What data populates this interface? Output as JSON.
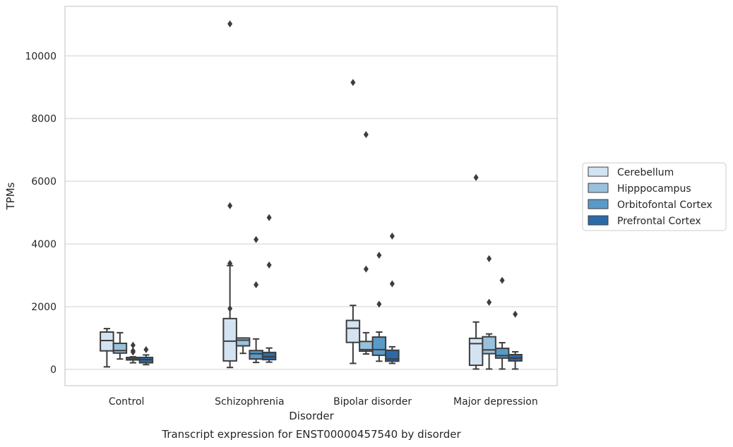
{
  "chart_data": {
    "type": "box",
    "title": "",
    "caption": "Transcript expression for ENST00000457540 by disorder",
    "xlabel": "Disorder",
    "ylabel": "TPMs",
    "ylim": [
      -520,
      11580
    ],
    "yticks": [
      0,
      2000,
      4000,
      6000,
      8000,
      10000
    ],
    "grid": "horizontal",
    "legend_position": "right",
    "categories": [
      "Control",
      "Schizophrenia",
      "Bipolar disorder",
      "Major depression"
    ],
    "series": [
      {
        "name": "Cerebellum",
        "color": "#d4e3f2",
        "boxes": [
          {
            "whisker_low": 80,
            "q1": 590,
            "median": 920,
            "q3": 1190,
            "whisker_high": 1300,
            "outliers": []
          },
          {
            "whisker_low": 60,
            "q1": 270,
            "median": 900,
            "q3": 1620,
            "whisker_high": 3310,
            "outliers": [
              1940,
              3380,
              5220,
              11020
            ]
          },
          {
            "whisker_low": 190,
            "q1": 860,
            "median": 1310,
            "q3": 1560,
            "whisker_high": 2040,
            "outliers": [
              9150
            ]
          },
          {
            "whisker_low": 10,
            "q1": 130,
            "median": 820,
            "q3": 990,
            "whisker_high": 1510,
            "outliers": [
              6120
            ]
          }
        ]
      },
      {
        "name": "Hipppocampus",
        "color": "#99c1de",
        "boxes": [
          {
            "whisker_low": 330,
            "q1": 520,
            "median": 600,
            "q3": 830,
            "whisker_high": 1170,
            "outliers": []
          },
          {
            "whisker_low": 510,
            "q1": 750,
            "median": 930,
            "q3": 1000,
            "whisker_high": 1000,
            "outliers": []
          },
          {
            "whisker_low": 490,
            "q1": 580,
            "median": 630,
            "q3": 890,
            "whisker_high": 1170,
            "outliers": [
              3200,
              7490
            ]
          },
          {
            "whisker_low": 10,
            "q1": 500,
            "median": 620,
            "q3": 1040,
            "whisker_high": 1130,
            "outliers": [
              2140,
              3530
            ]
          }
        ]
      },
      {
        "name": "Orbitofontal Cortex",
        "color": "#5a9ac8",
        "boxes": [
          {
            "whisker_low": 210,
            "q1": 300,
            "median": 330,
            "q3": 380,
            "whisker_high": 400,
            "outliers": [
              550,
              590,
              770
            ]
          },
          {
            "whisker_low": 220,
            "q1": 330,
            "median": 500,
            "q3": 600,
            "whisker_high": 970,
            "outliers": [
              2700,
              4140
            ]
          },
          {
            "whisker_low": 260,
            "q1": 450,
            "median": 630,
            "q3": 1030,
            "whisker_high": 1190,
            "outliers": [
              2080,
              3640
            ]
          },
          {
            "whisker_low": 10,
            "q1": 360,
            "median": 440,
            "q3": 670,
            "whisker_high": 850,
            "outliers": [
              2840
            ]
          }
        ]
      },
      {
        "name": "Prefrontal Cortex",
        "color": "#2b6aa9",
        "boxes": [
          {
            "whisker_low": 150,
            "q1": 210,
            "median": 310,
            "q3": 380,
            "whisker_high": 460,
            "outliers": [
              630
            ]
          },
          {
            "whisker_low": 230,
            "q1": 310,
            "median": 400,
            "q3": 540,
            "whisker_high": 680,
            "outliers": [
              3330,
              4840
            ]
          },
          {
            "whisker_low": 190,
            "q1": 260,
            "median": 330,
            "q3": 610,
            "whisker_high": 720,
            "outliers": [
              2730,
              4250
            ]
          },
          {
            "whisker_low": 10,
            "q1": 270,
            "median": 360,
            "q3": 470,
            "whisker_high": 560,
            "outliers": [
              1760
            ]
          }
        ]
      }
    ]
  }
}
